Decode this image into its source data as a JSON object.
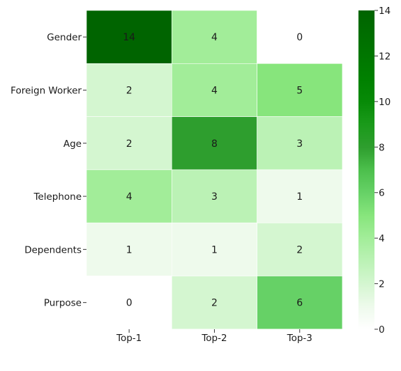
{
  "chart_data": {
    "type": "heatmap",
    "rows": [
      "Gender",
      "Foreign Worker",
      "Age",
      "Telephone",
      "Dependents",
      "Purpose"
    ],
    "columns": [
      "Top-1",
      "Top-2",
      "Top-3"
    ],
    "values": [
      [
        14,
        4,
        0
      ],
      [
        2,
        4,
        5
      ],
      [
        2,
        8,
        3
      ],
      [
        4,
        3,
        1
      ],
      [
        1,
        1,
        2
      ],
      [
        0,
        2,
        6
      ]
    ],
    "colorbar": {
      "min": 0,
      "max": 14,
      "ticks": [
        0,
        2,
        4,
        6,
        8,
        10,
        12,
        14
      ],
      "colormap": "Greens (white to dark green)"
    },
    "annotations": true,
    "colors": {
      "low": "#ffffff",
      "high": "#006400",
      "text_dark": "#262626",
      "text_light": "#ffffff"
    }
  }
}
